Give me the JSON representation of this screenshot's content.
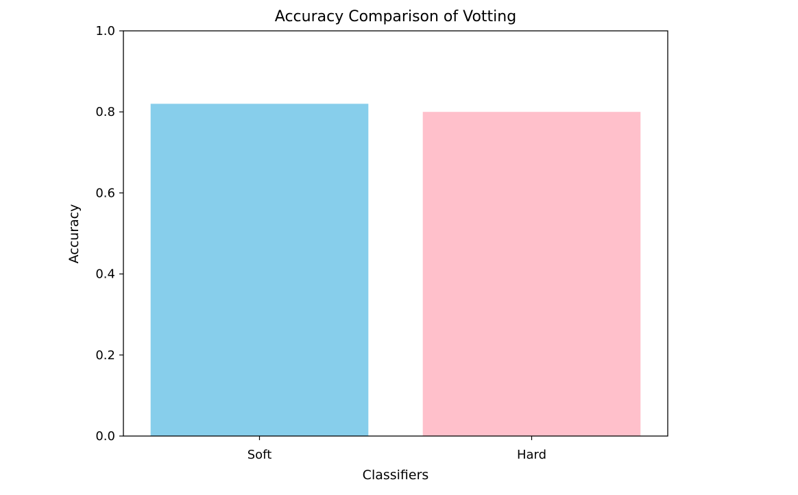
{
  "chart_data": {
    "type": "bar",
    "title": "Accuracy Comparison of Votting",
    "xlabel": "Classifiers",
    "ylabel": "Accuracy",
    "categories": [
      "Soft",
      "Hard"
    ],
    "values": [
      0.82,
      0.8
    ],
    "colors": [
      "#87CEEB",
      "#FFC0CB"
    ],
    "ylim": [
      0,
      1.0
    ],
    "yticks": [
      0.0,
      0.2,
      0.4,
      0.6,
      0.8,
      1.0
    ],
    "ytick_labels": [
      "0.0",
      "0.2",
      "0.4",
      "0.6",
      "0.8",
      "1.0"
    ],
    "grid": false,
    "legend": "none"
  }
}
